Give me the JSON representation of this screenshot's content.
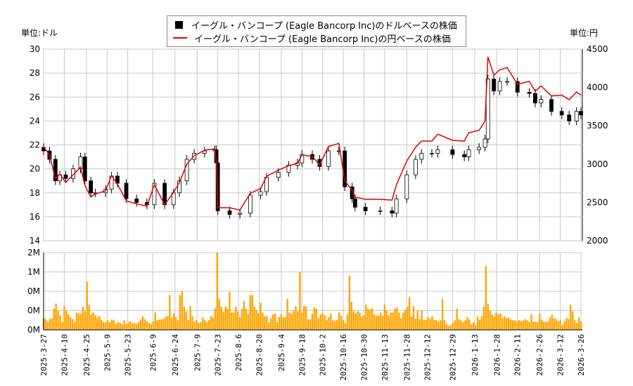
{
  "chart_data": [
    {
      "type": "candlestick-line",
      "legend": {
        "placement": "top-center",
        "entries": [
          "イーグル・バンコープ (Eagle Bancorp Inc)のドルベースの株価",
          "イーグル・バンコープ (Eagle Bancorp Inc)の円ベースの株価"
        ]
      },
      "left_unit": "単位:ドル",
      "right_unit": "単位:円",
      "ylim_left": [
        14,
        30
      ],
      "ylim_right": [
        2000,
        4500
      ],
      "yticks_left": [
        "14",
        "16",
        "18",
        "20",
        "22",
        "24",
        "26",
        "28",
        "30"
      ],
      "yticks_right": [
        "2000",
        "2500",
        "3000",
        "3500",
        "4000",
        "4500"
      ],
      "grid": true,
      "colors": {
        "usd": "#000000",
        "jpy": "#e00000",
        "volume": "#ffa500",
        "grid": "#c8c8c8"
      },
      "xlim": [
        "2025-03-27",
        "2026-03-26"
      ],
      "points": [
        [
          "2025-03-27",
          21.5,
          3225
        ],
        [
          "2025-03-31",
          20.8,
          3120
        ],
        [
          "2025-04-04",
          19.0,
          2810
        ],
        [
          "2025-04-07",
          19.5,
          2870
        ],
        [
          "2025-04-11",
          19.2,
          2760
        ],
        [
          "2025-04-16",
          20.0,
          2860
        ],
        [
          "2025-04-21",
          21.0,
          2960
        ],
        [
          "2025-04-24",
          19.0,
          2720
        ],
        [
          "2025-04-28",
          18.0,
          2570
        ],
        [
          "2025-05-01",
          18.0,
          2610
        ],
        [
          "2025-05-08",
          18.3,
          2650
        ],
        [
          "2025-05-12",
          19.4,
          2850
        ],
        [
          "2025-05-16",
          18.8,
          2740
        ],
        [
          "2025-05-22",
          17.5,
          2520
        ],
        [
          "2025-05-29",
          17.2,
          2480
        ],
        [
          "2025-06-05",
          17.0,
          2450
        ],
        [
          "2025-06-10",
          18.8,
          2730
        ],
        [
          "2025-06-17",
          17.0,
          2470
        ],
        [
          "2025-06-23",
          18.0,
          2630
        ],
        [
          "2025-06-27",
          19.0,
          2760
        ],
        [
          "2025-07-02",
          20.8,
          3000
        ],
        [
          "2025-07-07",
          21.3,
          3110
        ],
        [
          "2025-07-14",
          21.5,
          3180
        ],
        [
          "2025-07-21",
          21.6,
          3200
        ],
        [
          "2025-07-22",
          20.5,
          3030
        ],
        [
          "2025-07-23",
          16.5,
          2430
        ],
        [
          "2025-07-31",
          16.2,
          2430
        ],
        [
          "2025-08-07",
          16.3,
          2400
        ],
        [
          "2025-08-14",
          17.8,
          2620
        ],
        [
          "2025-08-21",
          18.1,
          2680
        ],
        [
          "2025-08-25",
          19.3,
          2840
        ],
        [
          "2025-09-02",
          19.7,
          2920
        ],
        [
          "2025-09-09",
          20.3,
          2980
        ],
        [
          "2025-09-15",
          20.5,
          3010
        ],
        [
          "2025-09-18",
          21.2,
          3120
        ],
        [
          "2025-09-25",
          20.8,
          3100
        ],
        [
          "2025-09-30",
          20.2,
          2990
        ],
        [
          "2025-10-06",
          21.5,
          3230
        ],
        [
          "2025-10-13",
          21.5,
          3270
        ],
        [
          "2025-10-17",
          18.5,
          2780
        ],
        [
          "2025-10-22",
          17.5,
          2660
        ],
        [
          "2025-10-24",
          16.8,
          2570
        ],
        [
          "2025-10-31",
          16.5,
          2540
        ],
        [
          "2025-11-10",
          16.5,
          2540
        ],
        [
          "2025-11-18",
          16.3,
          2530
        ],
        [
          "2025-11-21",
          17.5,
          2730
        ],
        [
          "2025-11-28",
          19.5,
          3040
        ],
        [
          "2025-12-04",
          20.8,
          3220
        ],
        [
          "2025-12-08",
          21.3,
          3300
        ],
        [
          "2025-12-15",
          21.3,
          3300
        ],
        [
          "2025-12-19",
          21.6,
          3390
        ],
        [
          "2025-12-29",
          21.2,
          3310
        ],
        [
          "2026-01-06",
          21.0,
          3300
        ],
        [
          "2026-01-09",
          21.6,
          3410
        ],
        [
          "2026-01-16",
          21.8,
          3440
        ],
        [
          "2026-01-20",
          22.5,
          3560
        ],
        [
          "2026-01-22",
          27.5,
          4400
        ],
        [
          "2026-01-26",
          26.5,
          4160
        ],
        [
          "2026-01-30",
          27.3,
          4230
        ],
        [
          "2026-02-04",
          27.3,
          4260
        ],
        [
          "2026-02-11",
          26.4,
          4040
        ],
        [
          "2026-02-19",
          26.3,
          4080
        ],
        [
          "2026-02-23",
          25.5,
          3950
        ],
        [
          "2026-02-27",
          25.8,
          4020
        ],
        [
          "2026-03-06",
          24.8,
          3890
        ],
        [
          "2026-03-13",
          24.5,
          3900
        ],
        [
          "2026-03-18",
          24.0,
          3840
        ],
        [
          "2026-03-23",
          24.8,
          3940
        ],
        [
          "2026-03-26",
          24.5,
          3900
        ]
      ]
    },
    {
      "type": "bar",
      "series": "volume",
      "ylim": [
        0,
        2000000
      ],
      "ytick_values": [
        0,
        500000,
        1000000,
        1500000,
        2000000
      ],
      "yticks": [
        "0M",
        "0M",
        "0M",
        "1M",
        "2M"
      ],
      "xticks": [
        "2025-3-27",
        "2025-4-10",
        "2025-4-25",
        "2025-5-9",
        "2025-5-23",
        "2025-6-9",
        "2025-6-24",
        "2025-7-9",
        "2025-7-23",
        "2025-8-6",
        "2025-8-20",
        "2025-9-4",
        "2025-9-18",
        "2025-10-2",
        "2025-10-16",
        "2025-10-30",
        "2025-11-13",
        "2025-11-28",
        "2025-12-12",
        "2025-12-29",
        "2026-1-13",
        "2026-1-28",
        "2026-2-11",
        "2026-2-26",
        "2026-3-12",
        "2026-3-26"
      ],
      "values_millions": [
        0.3,
        0.28,
        0.2,
        0.28,
        0.3,
        0.55,
        0.68,
        0.5,
        0.38,
        0.2,
        0.62,
        0.5,
        0.4,
        0.33,
        0.28,
        0.2,
        0.45,
        0.42,
        0.42,
        0.6,
        0.48,
        1.25,
        0.65,
        0.4,
        0.45,
        0.38,
        0.32,
        0.36,
        0.26,
        0.2,
        0.2,
        0.25,
        0.2,
        0.27,
        0.25,
        0.15,
        0.2,
        0.18,
        0.15,
        0.25,
        0.15,
        0.2,
        0.22,
        0.17,
        0.18,
        0.15,
        0.2,
        0.27,
        0.35,
        0.28,
        0.22,
        0.18,
        0.15,
        0.22,
        0.45,
        0.25,
        0.27,
        0.27,
        0.28,
        0.33,
        0.36,
        0.9,
        0.32,
        0.42,
        0.32,
        0.25,
        0.9,
        1.0,
        0.6,
        0.48,
        0.25,
        0.62,
        0.35,
        0.22,
        0.25,
        0.18,
        0.2,
        0.32,
        0.25,
        0.2,
        0.25,
        0.36,
        0.32,
        0.56,
        2.0,
        0.8,
        0.6,
        0.47,
        0.6,
        0.55,
        0.98,
        0.45,
        0.45,
        0.6,
        0.47,
        0.33,
        0.55,
        0.75,
        0.55,
        0.42,
        0.9,
        0.9,
        0.6,
        0.52,
        0.42,
        0.7,
        0.45,
        0.35,
        0.35,
        0.2,
        0.3,
        0.4,
        0.43,
        0.2,
        0.33,
        0.4,
        0.32,
        0.33,
        0.8,
        0.45,
        0.42,
        0.5,
        0.62,
        0.48,
        1.5,
        0.45,
        0.62,
        0.6,
        0.27,
        0.27,
        0.42,
        0.58,
        0.55,
        0.3,
        0.4,
        0.44,
        0.38,
        0.25,
        0.33,
        0.42,
        0.25,
        0.23,
        0.26,
        0.45,
        0.37,
        0.25,
        0.18,
        0.4,
        1.4,
        0.73,
        0.48,
        0.43,
        0.48,
        0.45,
        0.35,
        0.38,
        0.66,
        0.55,
        0.52,
        0.56,
        0.4,
        0.37,
        0.37,
        0.45,
        0.37,
        0.65,
        0.5,
        0.37,
        0.45,
        0.45,
        0.55,
        0.58,
        0.45,
        0.3,
        0.45,
        0.53,
        0.6,
        0.85,
        0.35,
        0.62,
        0.3,
        0.5,
        0.28,
        0.5,
        0.26,
        0.26,
        0.33,
        0.28,
        0.35,
        0.26,
        0.26,
        0.22,
        0.25,
        0.8,
        0.25,
        0.15,
        0.1,
        0.12,
        0.18,
        0.25,
        0.55,
        0.28,
        0.25,
        0.2,
        0.25,
        0.33,
        0.27,
        0.15,
        0.2,
        0.12,
        0.35,
        0.27,
        0.35,
        0.6,
        1.65,
        0.68,
        0.5,
        0.4,
        0.35,
        0.45,
        0.4,
        0.43,
        0.3,
        0.35,
        0.3,
        0.32,
        0.27,
        0.25,
        0.25,
        0.22,
        0.25,
        0.23,
        0.24,
        0.28,
        0.25,
        0.2,
        0.4,
        0.22,
        0.2,
        0.2,
        0.42,
        0.27,
        0.22,
        0.2,
        0.22,
        0.32,
        0.4,
        0.3,
        0.28,
        0.22,
        0.26,
        0.13,
        0.22,
        0.3,
        0.28,
        0.65,
        0.48,
        0.25,
        0.18,
        0.33,
        0.22
      ]
    }
  ]
}
